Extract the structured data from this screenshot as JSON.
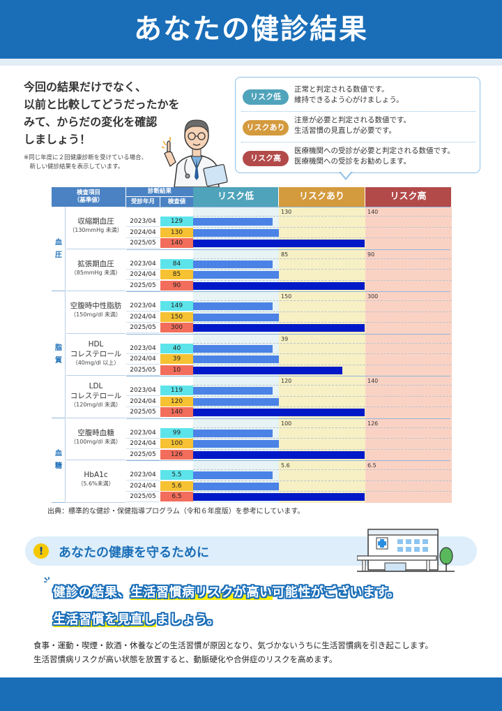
{
  "header": {
    "title": "あなたの健診結果"
  },
  "intro": {
    "lines": [
      "今回の結果だけでなく、",
      "以前と比較してどうだったかを",
      "みて、からだの変化を確認",
      "しましょう！"
    ],
    "note_lines": [
      "※同じ年度に２回健康診断を受けている場合、",
      "　新しい健診結果を表示しています。"
    ]
  },
  "legend": {
    "items": [
      {
        "label": "リスク低",
        "color": "#4fa3ba",
        "lines": [
          "正常と判定される数値です。",
          "維持できるよう心がけましょう。"
        ]
      },
      {
        "label": "リスクあり",
        "color": "#d49a3e",
        "lines": [
          "注意が必要と判定される数値です。",
          "生活習慣の見直しが必要です。"
        ]
      },
      {
        "label": "リスク高",
        "color": "#b34a4a",
        "lines": [
          "医療機関への受診が必要と判定される数値です。",
          "医療機関への受診をお勧めします。"
        ]
      }
    ]
  },
  "table": {
    "header_item": "検査項目",
    "header_item_sub": "（基準値）",
    "header_result": "診断結果",
    "header_year": "受診年月",
    "header_value": "検査値",
    "risk_headers": [
      {
        "label": "リスク低",
        "color": "#4fa3ba"
      },
      {
        "label": "リスクあり",
        "color": "#d49a3e"
      },
      {
        "label": "リスク高",
        "color": "#b34a4a"
      }
    ],
    "zone_colors": {
      "low": "#e7f3f4",
      "mid": "#f7f0c4",
      "high": "#fad2c4"
    },
    "value_colors": {
      "low": "#5ce4ea",
      "mid": "#f6c233",
      "high": "#f26d5b"
    },
    "bar_colors": {
      "past": "#4b82e6",
      "latest": "#0019c8"
    },
    "groups": [
      {
        "label": [
          "血",
          "圧"
        ],
        "items": [
          0,
          1
        ]
      },
      {
        "label": [
          "脂",
          "質"
        ],
        "items": [
          2,
          3,
          4
        ]
      },
      {
        "label": [
          "血",
          "糖"
        ],
        "items": [
          5,
          6
        ]
      }
    ],
    "items": [
      {
        "name": [
          "収縮期血圧"
        ],
        "std": "（130mmHg 未満）",
        "t1": "130",
        "t2": "140",
        "rows": [
          {
            "year": "2023/04",
            "value": "129",
            "level": "low",
            "frac": 0.93
          },
          {
            "year": "2024/04",
            "value": "130",
            "level": "mid",
            "frac": 1.0
          },
          {
            "year": "2025/05",
            "value": "140",
            "level": "high",
            "frac": 2.0
          }
        ]
      },
      {
        "name": [
          "拡張期血圧"
        ],
        "std": "（85mmHg 未満）",
        "t1": "85",
        "t2": "90",
        "rows": [
          {
            "year": "2023/04",
            "value": "84",
            "level": "low",
            "frac": 0.93
          },
          {
            "year": "2024/04",
            "value": "85",
            "level": "mid",
            "frac": 1.0
          },
          {
            "year": "2025/05",
            "value": "90",
            "level": "high",
            "frac": 2.0
          }
        ]
      },
      {
        "name": [
          "空腹時中性脂肪"
        ],
        "std": "（150mg/dl 未満）",
        "t1": "150",
        "t2": "300",
        "rows": [
          {
            "year": "2023/04",
            "value": "149",
            "level": "low",
            "frac": 0.93
          },
          {
            "year": "2024/04",
            "value": "150",
            "level": "mid",
            "frac": 1.0
          },
          {
            "year": "2025/05",
            "value": "300",
            "level": "high",
            "frac": 2.0
          }
        ]
      },
      {
        "name": [
          "HDL",
          "コレステロール"
        ],
        "std": "（40mg/dl 以上）",
        "t1": "39",
        "t2": "",
        "rows": [
          {
            "year": "2023/04",
            "value": "40",
            "level": "low",
            "frac": 0.93
          },
          {
            "year": "2024/04",
            "value": "39",
            "level": "mid",
            "frac": 1.0
          },
          {
            "year": "2025/05",
            "value": "10",
            "level": "high",
            "frac": 1.74
          }
        ]
      },
      {
        "name": [
          "LDL",
          "コレステロール"
        ],
        "std": "（120mg/dl 未満）",
        "t1": "120",
        "t2": "140",
        "rows": [
          {
            "year": "2023/04",
            "value": "119",
            "level": "low",
            "frac": 0.93
          },
          {
            "year": "2024/04",
            "value": "120",
            "level": "mid",
            "frac": 1.0
          },
          {
            "year": "2025/05",
            "value": "140",
            "level": "high",
            "frac": 2.0
          }
        ]
      },
      {
        "name": [
          "空腹時血糖"
        ],
        "std": "（100mg/dl 未満）",
        "t1": "100",
        "t2": "126",
        "rows": [
          {
            "year": "2023/04",
            "value": "99",
            "level": "low",
            "frac": 0.93
          },
          {
            "year": "2024/04",
            "value": "100",
            "level": "mid",
            "frac": 1.0
          },
          {
            "year": "2025/05",
            "value": "126",
            "level": "high",
            "frac": 2.0
          }
        ]
      },
      {
        "name": [
          "HbA1c"
        ],
        "std": "（5.6%未満）",
        "t1": "5.6",
        "t2": "6.5",
        "rows": [
          {
            "year": "2023/04",
            "value": "5.5",
            "level": "low",
            "frac": 0.93
          },
          {
            "year": "2024/04",
            "value": "5.6",
            "level": "mid",
            "frac": 1.0
          },
          {
            "year": "2025/05",
            "value": "6.5",
            "level": "high",
            "frac": 2.0
          }
        ]
      }
    ]
  },
  "source": "出典：標準的な健診・保健指導プログラム（令和６年度版）を参考にしています。",
  "section": {
    "icon": "!",
    "title": "あなたの健康を守るために",
    "msg1_a": "健診の結果、",
    "msg1_b": "生活習慣病リスクが高い",
    "msg1_c": "可能性がございます。",
    "msg2_a": "生活習慣を見直し",
    "msg2_b": "ましょう。",
    "body_lines": [
      "食事・運動・喫煙・飲酒・休養などの生活習慣が原因となり、気づかないうちに生活習慣病を引き起こします。",
      "生活習慣病リスクが高い状態を放置すると、動脈硬化や合併症のリスクを高めます。"
    ]
  }
}
